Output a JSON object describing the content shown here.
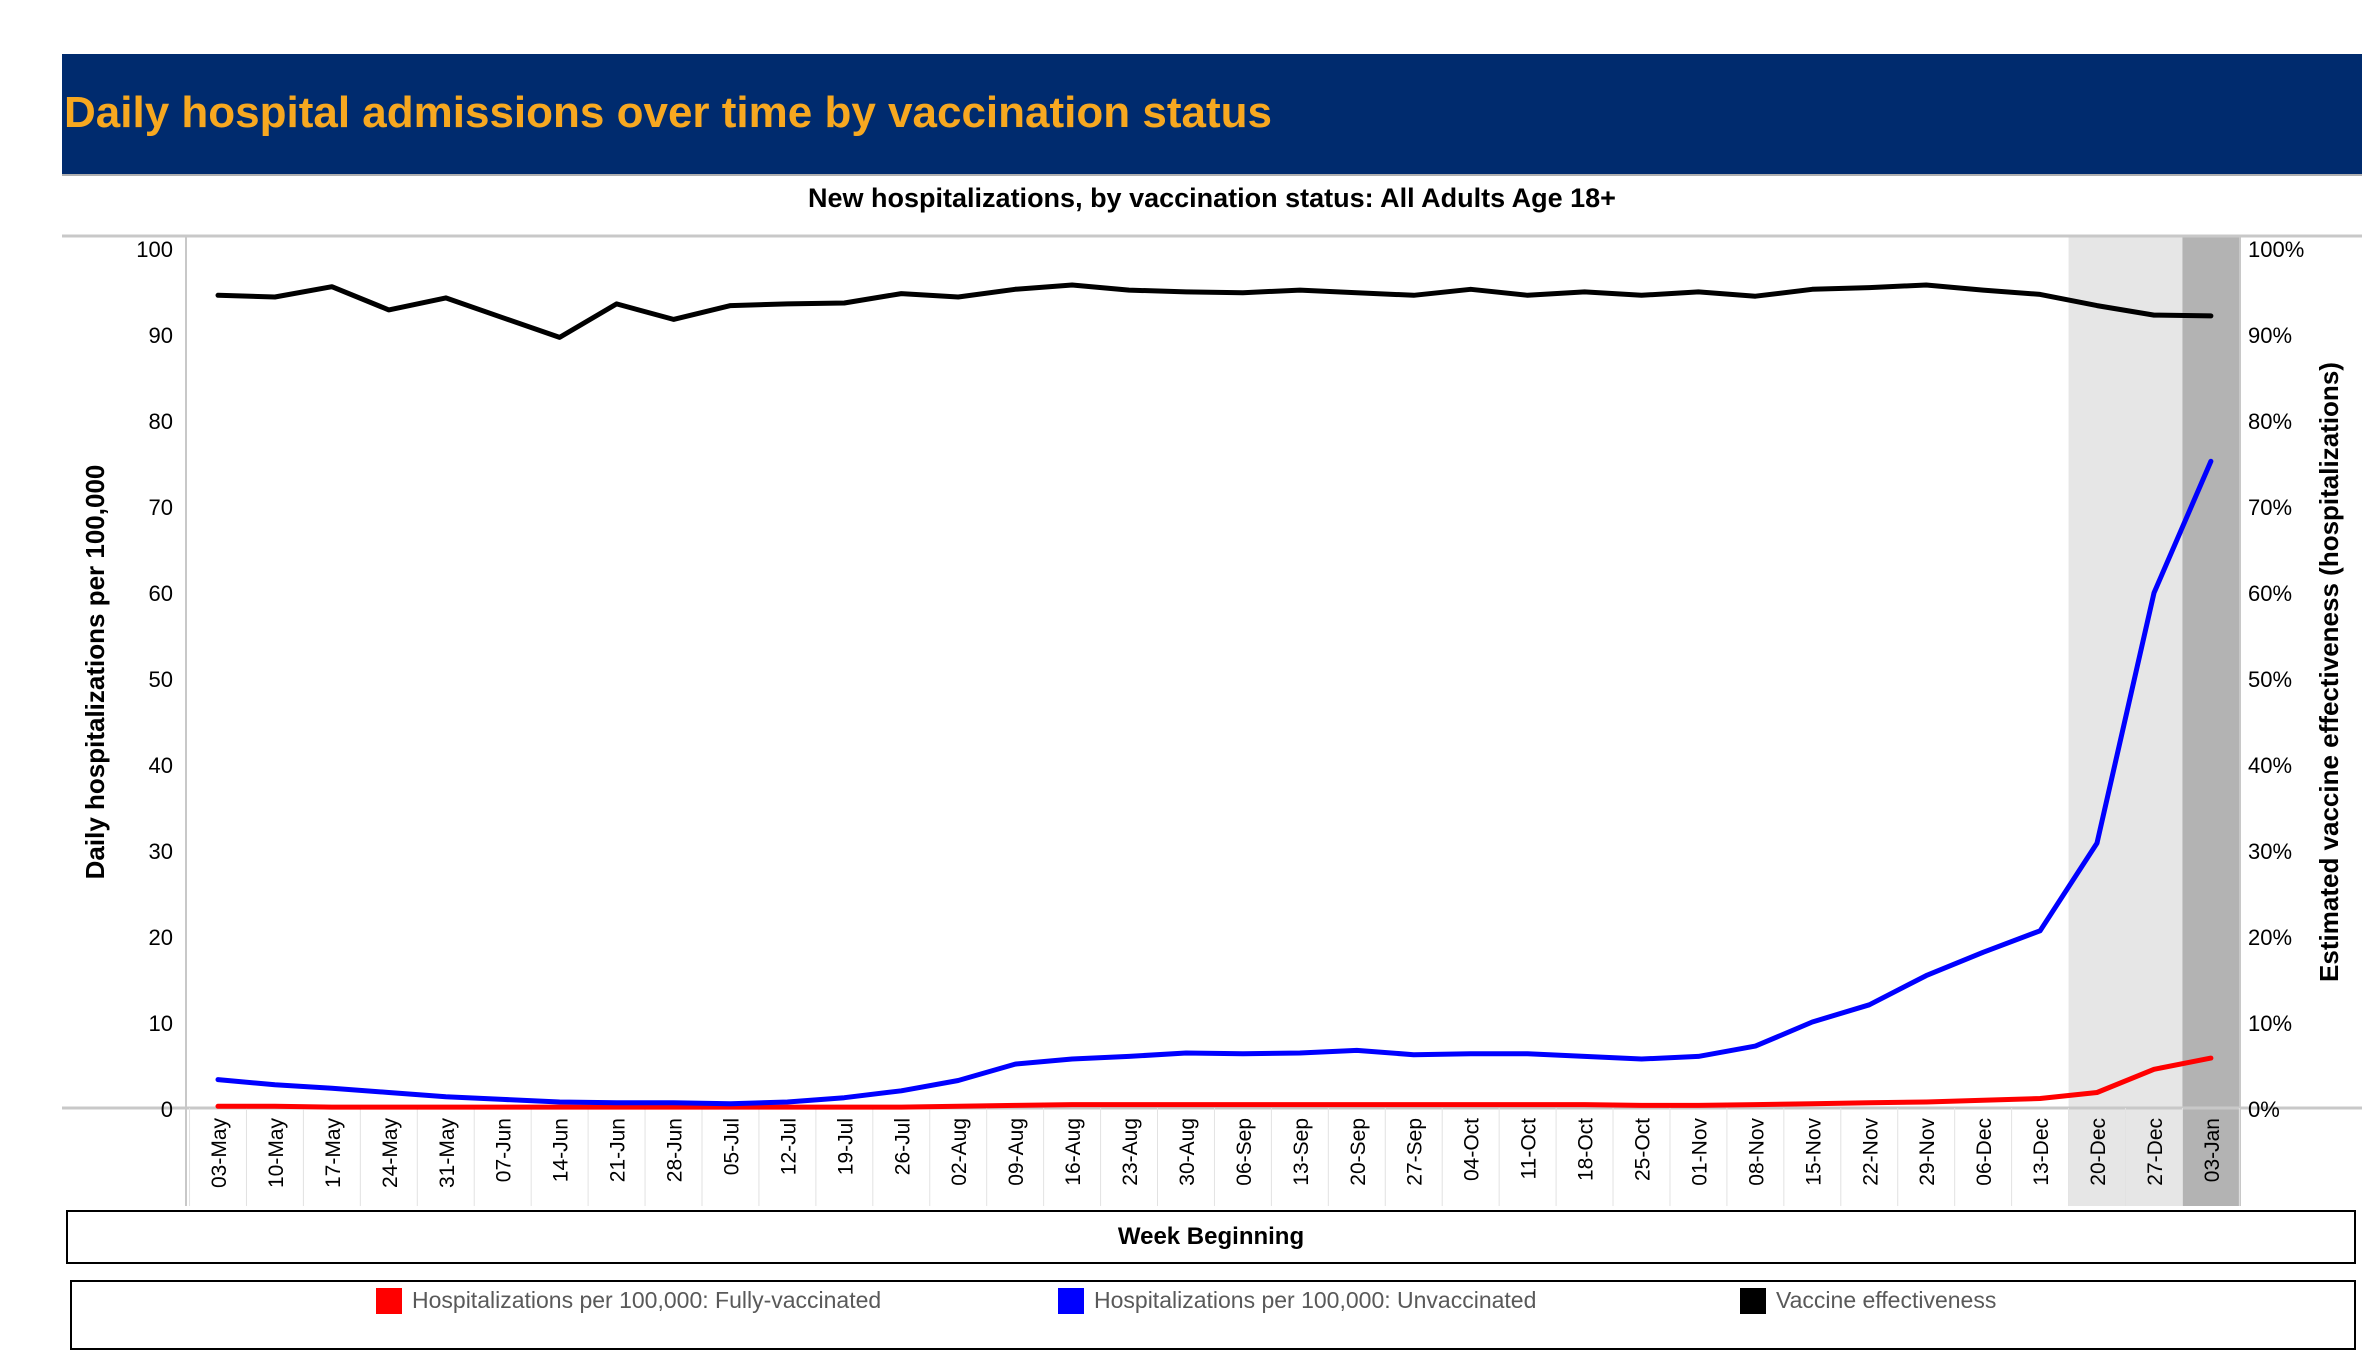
{
  "header": {
    "title": "Daily hospital admissions over time by vaccination status"
  },
  "chart_data": {
    "type": "line",
    "title": "New hospitalizations, by vaccination status: All Adults Age 18+",
    "xlabel": "Week Beginning",
    "ylabel": "Daily hospitalizations per 100,000",
    "y2label": "Estimated vaccine effectiveness (hospitalizations)",
    "ylim": [
      0,
      100
    ],
    "y2lim": [
      0,
      100
    ],
    "yticks": [
      "0",
      "10",
      "20",
      "30",
      "40",
      "50",
      "60",
      "70",
      "80",
      "90",
      "100"
    ],
    "y2ticks": [
      "0%",
      "10%",
      "20%",
      "30%",
      "40%",
      "50%",
      "60%",
      "70%",
      "80%",
      "90%",
      "100%"
    ],
    "categories": [
      "03-May",
      "10-May",
      "17-May",
      "24-May",
      "31-May",
      "07-Jun",
      "14-Jun",
      "21-Jun",
      "28-Jun",
      "05-Jul",
      "12-Jul",
      "19-Jul",
      "26-Jul",
      "02-Aug",
      "09-Aug",
      "16-Aug",
      "23-Aug",
      "30-Aug",
      "06-Sep",
      "13-Sep",
      "20-Sep",
      "27-Sep",
      "04-Oct",
      "11-Oct",
      "18-Oct",
      "25-Oct",
      "01-Nov",
      "08-Nov",
      "15-Nov",
      "22-Nov",
      "29-Nov",
      "06-Dec",
      "13-Dec",
      "20-Dec",
      "27-Dec",
      "03-Jan"
    ],
    "series": [
      {
        "name": "Hospitalizations per 100,000: Fully-vaccinated",
        "color": "#ff0000",
        "axis": "left",
        "values": [
          0.2,
          0.2,
          0.1,
          0.1,
          0.1,
          0.1,
          0.1,
          0.1,
          0.1,
          0.1,
          0.1,
          0.1,
          0.1,
          0.2,
          0.3,
          0.4,
          0.4,
          0.4,
          0.4,
          0.4,
          0.4,
          0.4,
          0.4,
          0.4,
          0.4,
          0.3,
          0.3,
          0.4,
          0.5,
          0.6,
          0.7,
          0.9,
          1.1,
          1.8,
          4.5,
          5.8
        ]
      },
      {
        "name": "Hospitalizations per 100,000: Unvaccinated",
        "color": "#0000ff",
        "axis": "left",
        "values": [
          3.3,
          2.7,
          2.3,
          1.8,
          1.3,
          1.0,
          0.7,
          0.6,
          0.6,
          0.5,
          0.7,
          1.2,
          2.0,
          3.2,
          5.1,
          5.7,
          6.0,
          6.4,
          6.3,
          6.4,
          6.7,
          6.2,
          6.3,
          6.3,
          6.0,
          5.7,
          6.0,
          7.2,
          10.0,
          12.0,
          15.4,
          18.1,
          20.6,
          30.8,
          59.9,
          75.2
        ]
      },
      {
        "name": "Vaccine effectiveness",
        "color": "#000000",
        "axis": "right",
        "values": [
          94.5,
          94.3,
          95.5,
          92.8,
          94.2,
          91.9,
          89.6,
          93.5,
          91.7,
          93.3,
          93.5,
          93.6,
          94.7,
          94.3,
          95.2,
          95.7,
          95.1,
          94.9,
          94.8,
          95.1,
          94.8,
          94.5,
          95.2,
          94.5,
          94.9,
          94.5,
          94.9,
          94.4,
          95.2,
          95.4,
          95.7,
          95.1,
          94.6,
          93.3,
          92.2,
          92.1
        ]
      }
    ],
    "shaded_regions": [
      {
        "from": "20-Dec",
        "to": "27-Dec",
        "color": "#e6e6e6"
      },
      {
        "from": "03-Jan",
        "to": "03-Jan",
        "color": "#b3b3b3"
      }
    ],
    "grid": false,
    "legend_position": "bottom"
  }
}
